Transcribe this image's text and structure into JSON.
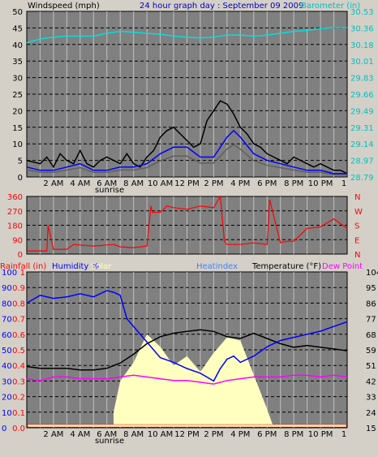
{
  "header": {
    "left_label": "Windspeed (mph)",
    "title": "24 hour graph day : September 09 2009",
    "right_label": "Barometer (in)"
  },
  "colors": {
    "bg": "#d4d0c8",
    "plot": "#808080",
    "grid_dash": "#000000",
    "grid_light": "#c0c0c0",
    "gust": "#000000",
    "avg": "#0000ff",
    "wind_grey": "#606060",
    "baro": "#00e0e0",
    "dir": "#ff0000",
    "rain": "#ff0000",
    "humidity": "#0000ff",
    "solar": "#ffffc0",
    "heatindex": "#4080ff",
    "temperature": "#000000",
    "dewpoint": "#ff00ff",
    "tick_right_cyan": "#00c0c0"
  },
  "chart_data": [
    {
      "type": "line",
      "name": "wind-barometer",
      "title": "24 hour graph day : September 09 2009",
      "ylabel_left": "Windspeed (mph)",
      "ylabel_right": "Barometer (in)",
      "y_left_ticks": [
        "0",
        "5",
        "10",
        "15",
        "20",
        "25",
        "30",
        "35",
        "40",
        "45",
        "50"
      ],
      "y_right_ticks": [
        "28.79",
        "28.97",
        "29.14",
        "29.31",
        "29.49",
        "29.66",
        "29.83",
        "30.01",
        "30.18",
        "30.36",
        "30.53"
      ],
      "ylim_left": [
        0,
        50
      ],
      "ylim_right": [
        28.79,
        30.53
      ],
      "x_ticks": [
        "2 AM",
        "4 AM",
        "6 AM",
        "8 AM",
        "10 AM",
        "12 PM",
        "2 PM",
        "4 PM",
        "6 PM",
        "8 PM",
        "10 PM",
        "1"
      ],
      "x_sublabel": "sunrise",
      "xlim_hours": [
        0,
        24
      ],
      "series": [
        {
          "name": "Gust",
          "x": [
            0,
            1,
            1.5,
            2,
            2.5,
            3,
            3.5,
            4,
            4.5,
            5,
            5.5,
            6,
            6.5,
            7,
            7.5,
            8,
            8.5,
            9,
            9.5,
            10,
            10.5,
            11,
            11.5,
            12,
            12.5,
            13,
            13.5,
            14,
            14.5,
            15,
            15.5,
            16,
            16.5,
            17,
            17.5,
            18,
            18.5,
            19,
            19.5,
            20,
            20.5,
            21,
            21.5,
            22,
            22.5,
            23,
            23.5,
            24
          ],
          "values": [
            5,
            4,
            6,
            3,
            7,
            5,
            4,
            8,
            4,
            3,
            5,
            6,
            5,
            4,
            7,
            4,
            3,
            6,
            8,
            12,
            14,
            15,
            13,
            11,
            9,
            10,
            17,
            20,
            23,
            22,
            19,
            15,
            13,
            10,
            9,
            7,
            6,
            5,
            4,
            6,
            5,
            4,
            3,
            4,
            3,
            2,
            2,
            1
          ]
        },
        {
          "name": "Avg",
          "x": [
            0,
            1,
            2,
            3,
            4,
            5,
            6,
            7,
            8,
            9,
            10,
            11,
            12,
            13,
            14,
            15,
            15.5,
            16,
            17,
            18,
            19,
            20,
            21,
            22,
            23,
            24
          ],
          "values": [
            3,
            2,
            2,
            3,
            4,
            2,
            2,
            3,
            3,
            4,
            7,
            9,
            9,
            6,
            6,
            12,
            14,
            12,
            7,
            5,
            4,
            3,
            2,
            2,
            1,
            1
          ]
        },
        {
          "name": "Barometer",
          "x": [
            0,
            1,
            2,
            3,
            4,
            5,
            6,
            7,
            8,
            9,
            10,
            11,
            12,
            13,
            14,
            15,
            16,
            17,
            18,
            19,
            20,
            21,
            22,
            23,
            24
          ],
          "values": [
            30.2,
            30.24,
            30.26,
            30.27,
            30.27,
            30.27,
            30.3,
            30.32,
            30.31,
            30.3,
            30.29,
            30.27,
            30.26,
            30.25,
            30.26,
            30.28,
            30.28,
            30.27,
            30.28,
            30.3,
            30.32,
            30.33,
            30.35,
            30.36,
            30.36
          ]
        }
      ]
    },
    {
      "type": "line",
      "name": "wind-direction",
      "y_left_ticks": [
        "0",
        "90",
        "180",
        "270",
        "360"
      ],
      "y_right_ticks": [
        "N",
        "E",
        "S",
        "W",
        "N"
      ],
      "ylim": [
        0,
        360
      ],
      "series": [
        {
          "name": "Direction",
          "x": [
            0,
            1.5,
            1.6,
            2,
            3,
            3.5,
            5,
            6.5,
            7,
            8,
            9,
            9.3,
            9.4,
            10,
            10.5,
            11,
            12,
            13,
            14,
            14.5,
            14.8,
            15,
            16,
            17,
            18,
            18.2,
            19,
            19.5,
            20,
            21,
            22,
            23,
            24
          ],
          "values": [
            20,
            20,
            180,
            30,
            30,
            60,
            50,
            60,
            45,
            40,
            50,
            300,
            260,
            260,
            300,
            290,
            280,
            300,
            290,
            360,
            80,
            60,
            60,
            70,
            60,
            340,
            70,
            80,
            80,
            160,
            170,
            220,
            160
          ]
        }
      ]
    },
    {
      "type": "line",
      "name": "rain-humidity-temperature",
      "legend": [
        "Rainfall (in)",
        "Humidity %",
        "Solar",
        "Heatindex",
        "Temperature (°F)",
        "Dew Point"
      ],
      "y_rain_ticks": [
        "0.0",
        "0.1",
        "0.2",
        "0.3",
        "0.4",
        "0.5",
        "0.6",
        "0.7",
        "0.8",
        "0.9",
        "1"
      ],
      "y_humidity_ticks": [
        "0",
        "10",
        "20",
        "30",
        "40",
        "50",
        "60",
        "70",
        "80",
        "90",
        "100"
      ],
      "y_temp_ticks": [
        "15",
        "24",
        "33",
        "42",
        "51",
        "59",
        "68",
        "77",
        "86",
        "95",
        "104"
      ],
      "ylim_humidity": [
        0,
        100
      ],
      "ylim_temp": [
        15,
        104
      ],
      "series": [
        {
          "name": "Humidity %",
          "x": [
            0,
            1,
            2,
            3,
            4,
            5,
            6,
            6.5,
            7,
            7.5,
            8,
            9,
            10,
            11,
            12,
            13,
            14,
            14.5,
            15,
            15.5,
            16,
            17,
            18,
            19,
            20,
            21,
            22,
            23,
            24
          ],
          "values": [
            80,
            85,
            83,
            84,
            86,
            84,
            88,
            87,
            85,
            70,
            65,
            55,
            45,
            42,
            38,
            35,
            30,
            38,
            44,
            46,
            42,
            46,
            52,
            56,
            58,
            60,
            62,
            65,
            68
          ]
        },
        {
          "name": "Temperature (°F)",
          "x": [
            0,
            1,
            2,
            3,
            4,
            5,
            6,
            7,
            8,
            9,
            10,
            11,
            12,
            13,
            14,
            15,
            16,
            17,
            18,
            19,
            20,
            21,
            22,
            23,
            24
          ],
          "values": [
            50,
            49,
            49,
            49,
            48,
            48,
            49,
            52,
            57,
            63,
            67,
            69,
            70,
            71,
            70,
            67,
            66,
            69,
            66,
            63,
            61,
            62,
            61,
            60,
            59
          ]
        },
        {
          "name": "Dew Point",
          "x": [
            0,
            1,
            2,
            3,
            4,
            5,
            6,
            7,
            8,
            9,
            10,
            11,
            12,
            13,
            14,
            15,
            16,
            17,
            18,
            19,
            20,
            21,
            22,
            23,
            24
          ],
          "values": [
            43,
            42,
            44,
            44,
            43,
            43,
            43,
            44,
            45,
            44,
            43,
            42,
            42,
            41,
            40,
            42,
            43,
            44,
            44,
            44,
            45,
            45,
            44,
            45,
            44
          ]
        },
        {
          "name": "Solar",
          "x": [
            6.5,
            7,
            8,
            9,
            10,
            11,
            12,
            13,
            14,
            15,
            16,
            17,
            18,
            18.5
          ],
          "values": [
            10,
            30,
            42,
            60,
            52,
            40,
            46,
            36,
            48,
            58,
            56,
            34,
            12,
            0
          ]
        }
      ]
    }
  ]
}
